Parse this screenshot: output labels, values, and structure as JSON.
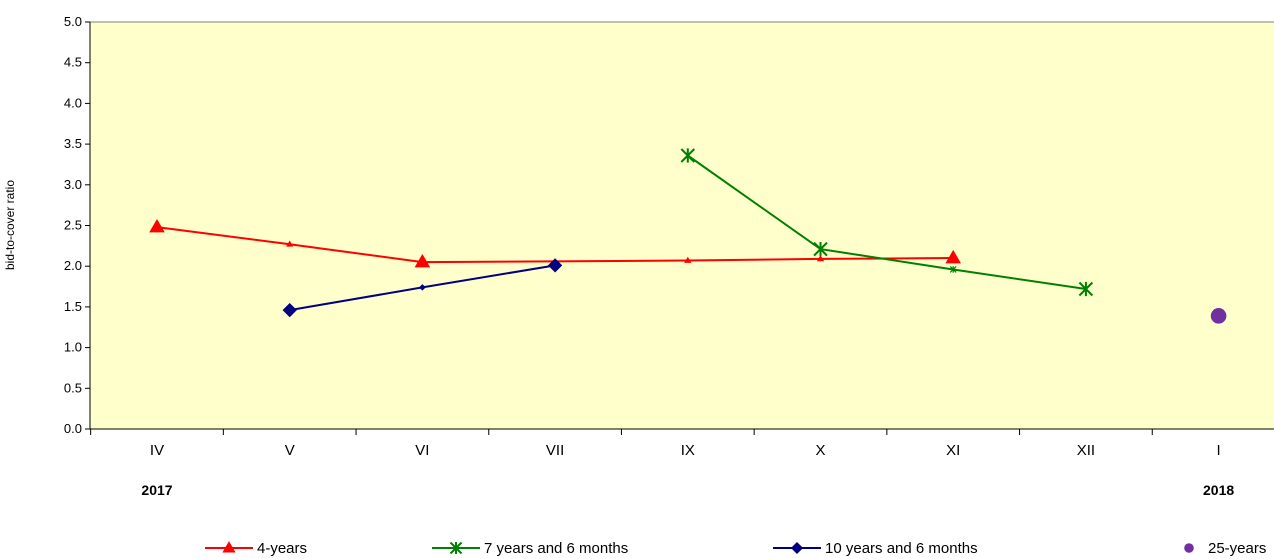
{
  "chart_data": {
    "type": "line",
    "ylabel": "bid-to-cover ratio",
    "ylim": [
      0,
      5
    ],
    "yticks": [
      "0.0",
      "0.5",
      "1.0",
      "1.5",
      "2.0",
      "2.5",
      "3.0",
      "3.5",
      "4.0",
      "4.5",
      "5.0"
    ],
    "categories": [
      "IV",
      "V",
      "VI",
      "VII",
      "IX",
      "X",
      "XI",
      "XII",
      "I"
    ],
    "year_labels": [
      {
        "text": "2017",
        "category": "IV"
      },
      {
        "text": "2018",
        "category": "I"
      }
    ],
    "plot_background": "#FFFFCC",
    "grid": false,
    "legend_position": "bottom",
    "series": [
      {
        "name": "4-years",
        "color": "#FF0000",
        "marker": "triangle",
        "points": [
          {
            "category": "IV",
            "value": 2.48,
            "marker": "large"
          },
          {
            "category": "V",
            "value": 2.27,
            "marker": "small"
          },
          {
            "category": "VI",
            "value": 2.05,
            "marker": "large"
          },
          {
            "category": "IX",
            "value": 2.07,
            "marker": "small"
          },
          {
            "category": "X",
            "value": 2.09,
            "marker": "small"
          },
          {
            "category": "XI",
            "value": 2.1,
            "marker": "large"
          }
        ]
      },
      {
        "name": "7 years and 6 months",
        "color": "#008000",
        "marker": "star",
        "points": [
          {
            "category": "IX",
            "value": 3.36,
            "marker": "large"
          },
          {
            "category": "X",
            "value": 2.21,
            "marker": "large"
          },
          {
            "category": "XI",
            "value": 1.96,
            "marker": "small"
          },
          {
            "category": "XII",
            "value": 1.72,
            "marker": "large"
          }
        ]
      },
      {
        "name": "10 years and 6 months",
        "color": "#000080",
        "marker": "diamond",
        "points": [
          {
            "category": "V",
            "value": 1.46,
            "marker": "large"
          },
          {
            "category": "VI",
            "value": 1.74,
            "marker": "small"
          },
          {
            "category": "VII",
            "value": 2.01,
            "marker": "large"
          }
        ]
      },
      {
        "name": "25-years",
        "color": "#7030A0",
        "marker": "circle",
        "points": [
          {
            "category": "I",
            "value": 1.39,
            "marker": "large"
          }
        ]
      }
    ]
  }
}
